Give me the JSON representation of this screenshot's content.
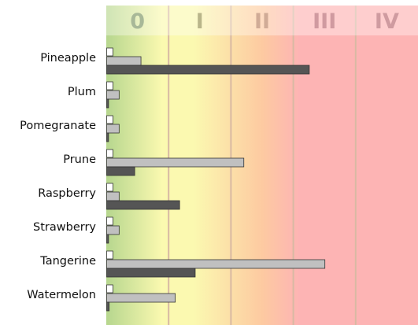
{
  "chart_data": {
    "type": "bar",
    "orientation": "horizontal",
    "categories": [
      "Pineapple",
      "Plum",
      "Pomegranate",
      "Prune",
      "Raspberry",
      "Strawberry",
      "Tangerine",
      "Watermelon"
    ],
    "series": [
      {
        "key": "s1",
        "color": "#ffffff",
        "values": [
          0.1,
          0.1,
          0.1,
          0.1,
          0.1,
          0.1,
          0.1,
          0.1
        ]
      },
      {
        "key": "s2",
        "color": "#c0c0c0",
        "values": [
          0.55,
          0.2,
          0.2,
          2.2,
          0.2,
          0.2,
          3.5,
          1.1
        ]
      },
      {
        "key": "s3",
        "color": "#555555",
        "values": [
          3.25,
          0.03,
          0.03,
          0.45,
          1.17,
          0.03,
          1.42,
          0.04
        ]
      }
    ],
    "xlim": [
      0,
      5
    ],
    "grid": true,
    "zones": [
      {
        "label": "0",
        "label_color": "#a8b898"
      },
      {
        "label": "I",
        "label_color": "#b9b58a"
      },
      {
        "label": "II",
        "label_color": "#d0ab96"
      },
      {
        "label": "III",
        "label_color": "#d09aa0"
      },
      {
        "label": "IV",
        "label_color": "#cf9ba0"
      }
    ],
    "zone_colors": {
      "green": "#b6d68e",
      "yellow": "#fbf9b0",
      "orange": "#fdcaa1",
      "red": "#fdb4b4",
      "grid_line": "#d8b9a3"
    },
    "title": "",
    "xlabel": "",
    "ylabel": ""
  }
}
